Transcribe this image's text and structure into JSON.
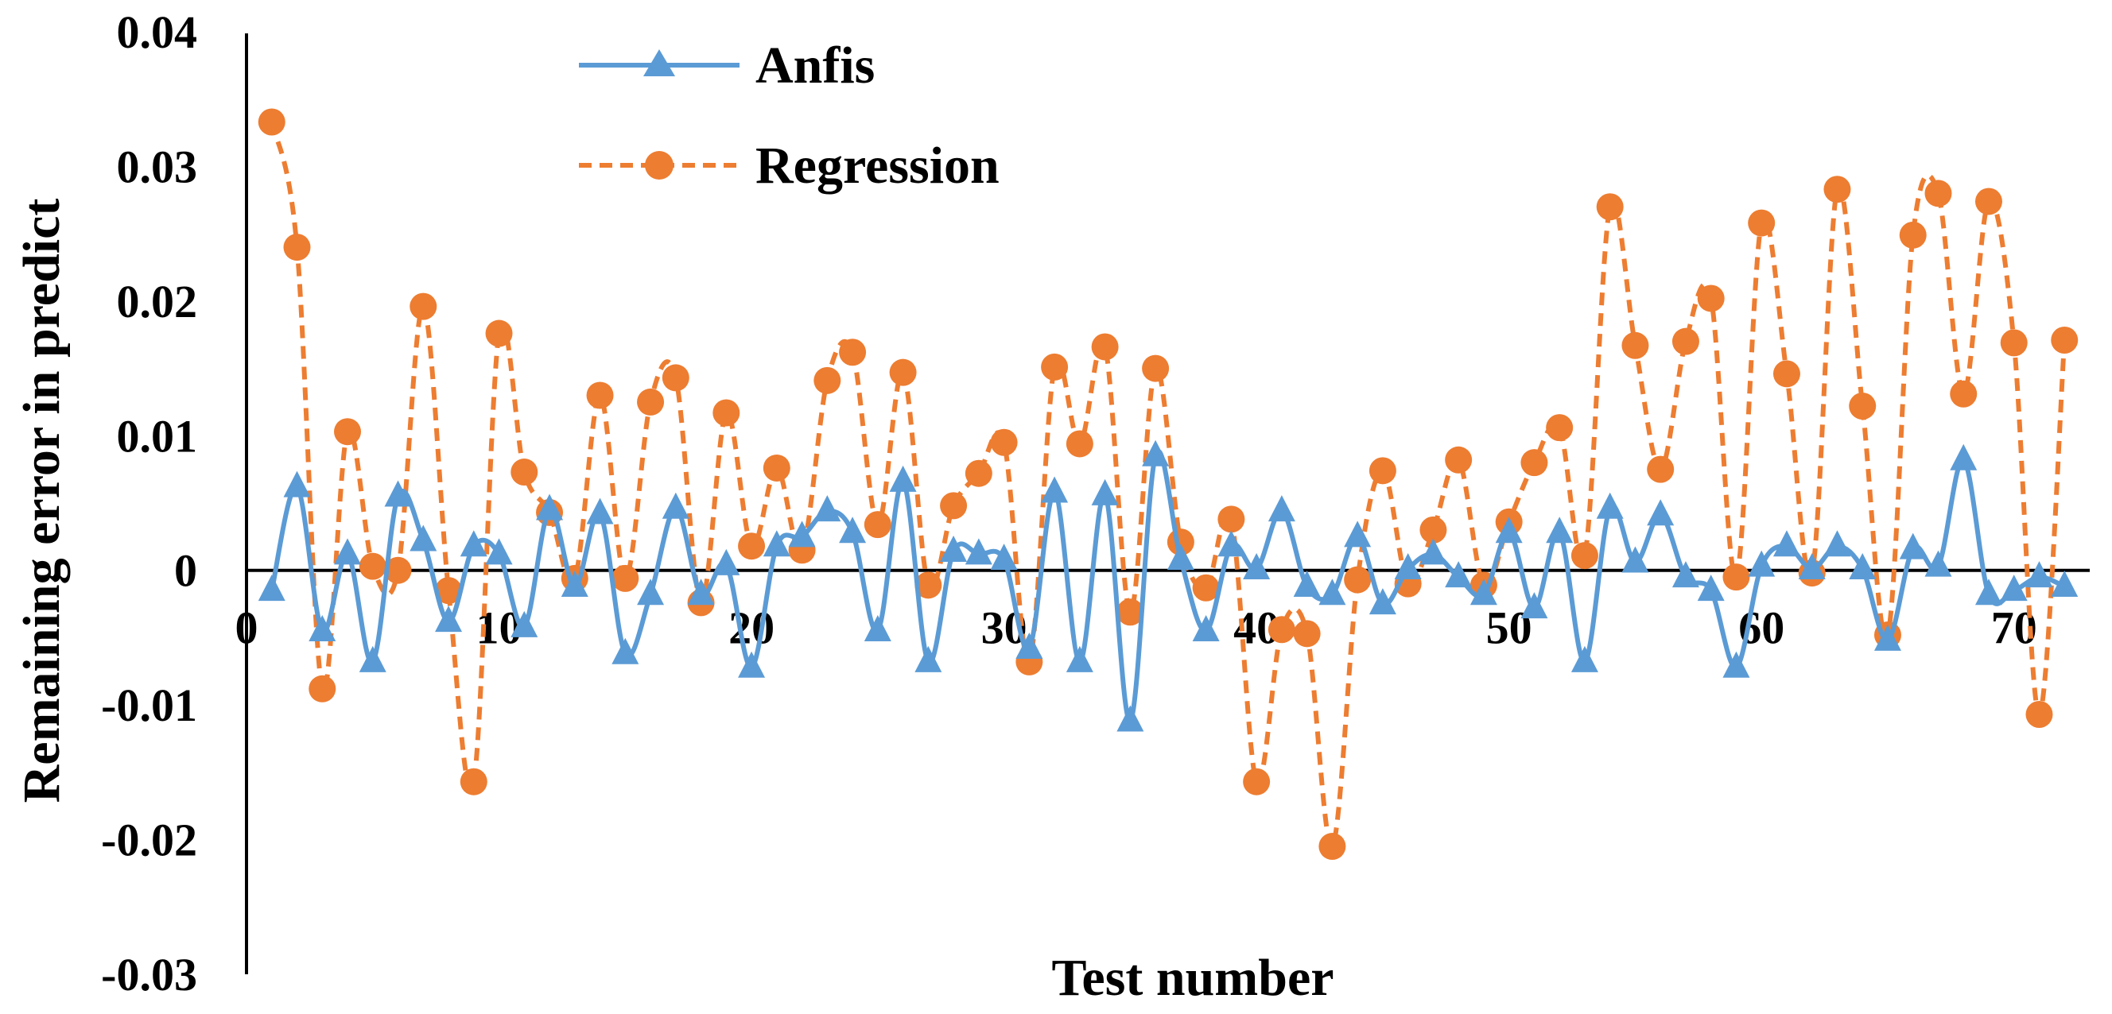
{
  "chart_data": {
    "type": "line",
    "title": "",
    "xlabel": "Test number",
    "ylabel": "Remaining error in predict",
    "xlim": [
      0,
      73
    ],
    "ylim": [
      -0.03,
      0.04
    ],
    "x_ticks": [
      0,
      10,
      20,
      30,
      40,
      50,
      60,
      70
    ],
    "y_ticks": [
      0.04,
      0.03,
      0.02,
      0.01,
      0,
      -0.01,
      -0.02,
      -0.03
    ],
    "y_tick_labels": [
      "0.04",
      "0.03",
      "0.02",
      "0.01",
      "0",
      "-0.01",
      "-0.02",
      "-0.03"
    ],
    "x_tick_labels": [
      "0",
      "10",
      "20",
      "30",
      "40",
      "50",
      "60",
      "70"
    ],
    "grid": false,
    "legend_position": "top-left",
    "colors": {
      "anfis": "#5b9bd5",
      "regression": "#ed7d31",
      "axis": "#000000"
    },
    "x": [
      1,
      2,
      3,
      4,
      5,
      6,
      7,
      8,
      9,
      10,
      11,
      12,
      13,
      14,
      15,
      16,
      17,
      18,
      19,
      20,
      21,
      22,
      23,
      24,
      25,
      26,
      27,
      28,
      29,
      30,
      31,
      32,
      33,
      34,
      35,
      36,
      37,
      38,
      39,
      40,
      41,
      42,
      43,
      44,
      45,
      46,
      47,
      48,
      49,
      50,
      51,
      52,
      53,
      54,
      55,
      56,
      57,
      58,
      59,
      60,
      61,
      62,
      63,
      64,
      65,
      66,
      67,
      68,
      69,
      70,
      71,
      72
    ],
    "series": [
      {
        "name": "Anfis",
        "marker": "triangle",
        "line_style": "solid",
        "values": [
          -0.0015,
          0.0062,
          -0.0045,
          0.0012,
          -0.0068,
          0.0055,
          0.0022,
          -0.0038,
          0.0018,
          0.0012,
          -0.0042,
          0.0045,
          -0.0012,
          0.0042,
          -0.0062,
          -0.0018,
          0.0046,
          -0.0018,
          0.0004,
          -0.0072,
          0.0018,
          0.0025,
          0.0044,
          0.0028,
          -0.0045,
          0.0066,
          -0.0068,
          0.0014,
          0.0012,
          0.0008,
          -0.0058,
          0.0058,
          -0.0068,
          0.0056,
          -0.0112,
          0.0085,
          0.0008,
          -0.0045,
          0.0018,
          0.0001,
          0.0044,
          -0.0012,
          -0.0018,
          0.0025,
          -0.0025,
          0.0001,
          0.0012,
          -0.0005,
          -0.0018,
          0.0028,
          -0.0028,
          0.0028,
          -0.0068,
          0.0046,
          0.0006,
          0.0041,
          -0.0005,
          -0.0015,
          -0.0072,
          0.0003,
          0.0018,
          0.0001,
          0.0018,
          0.0001,
          -0.0052,
          0.0016,
          0.0003,
          0.0082,
          -0.0018,
          -0.0015,
          -0.0005,
          -0.0012
        ]
      },
      {
        "name": "Regression",
        "marker": "circle",
        "line_style": "dashed",
        "values": [
          0.0333,
          0.024,
          -0.0088,
          0.0103,
          0.0003,
          0.0,
          0.0196,
          -0.0015,
          -0.0157,
          0.0176,
          0.0073,
          0.0043,
          -0.0006,
          0.013,
          -0.0006,
          0.0125,
          0.0143,
          -0.0024,
          0.0117,
          0.0018,
          0.0076,
          0.0015,
          0.0141,
          0.0162,
          0.0034,
          0.0147,
          -0.0011,
          0.0048,
          0.0072,
          0.0095,
          -0.0068,
          0.0151,
          0.0094,
          0.0166,
          -0.0031,
          0.015,
          0.0021,
          -0.0013,
          0.0038,
          -0.0157,
          -0.0044,
          -0.0047,
          -0.0205,
          -0.0007,
          0.0074,
          -0.001,
          0.003,
          0.0082,
          -0.0011,
          0.0036,
          0.008,
          0.0106,
          0.0011,
          0.027,
          0.0167,
          0.0075,
          0.017,
          0.0202,
          -0.0005,
          0.0258,
          0.0146,
          -0.0002,
          0.0283,
          0.0122,
          -0.0048,
          0.0249,
          0.028,
          0.0131,
          0.0274,
          0.0169,
          -0.0107,
          0.0171
        ]
      }
    ]
  }
}
